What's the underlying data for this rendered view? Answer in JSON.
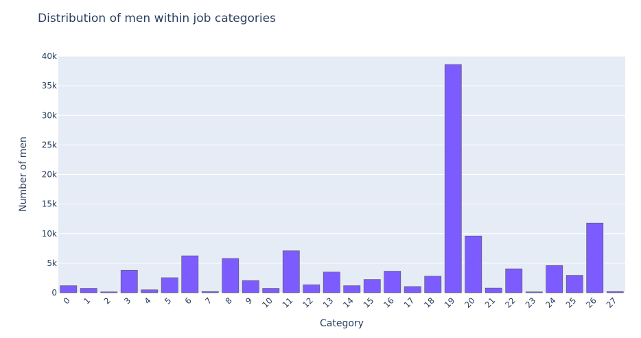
{
  "chart_data": {
    "type": "bar",
    "title": "Distribution of men within job categories",
    "xlabel": "Category",
    "ylabel": "Number of men",
    "categories": [
      "0",
      "1",
      "2",
      "3",
      "4",
      "5",
      "6",
      "7",
      "8",
      "9",
      "10",
      "11",
      "12",
      "13",
      "14",
      "15",
      "16",
      "17",
      "18",
      "19",
      "20",
      "21",
      "22",
      "23",
      "24",
      "25",
      "26",
      "27"
    ],
    "values": [
      1200,
      750,
      150,
      3800,
      500,
      2550,
      6250,
      200,
      5800,
      2050,
      750,
      7100,
      1350,
      3500,
      1200,
      2250,
      3650,
      1050,
      2800,
      38600,
      9600,
      800,
      4050,
      150,
      4600,
      2950,
      11800,
      200
    ],
    "ylim": [
      0,
      40000
    ],
    "yticks": [
      "0",
      "5k",
      "10k",
      "15k",
      "20k",
      "25k",
      "30k",
      "35k",
      "40k"
    ],
    "grid": true,
    "colors": {
      "bar": "#7d5cff",
      "bar_edge": "#555555",
      "plot_bg": "#e5ecf6",
      "grid": "#ffffff",
      "text": "#2a3f5f"
    }
  }
}
